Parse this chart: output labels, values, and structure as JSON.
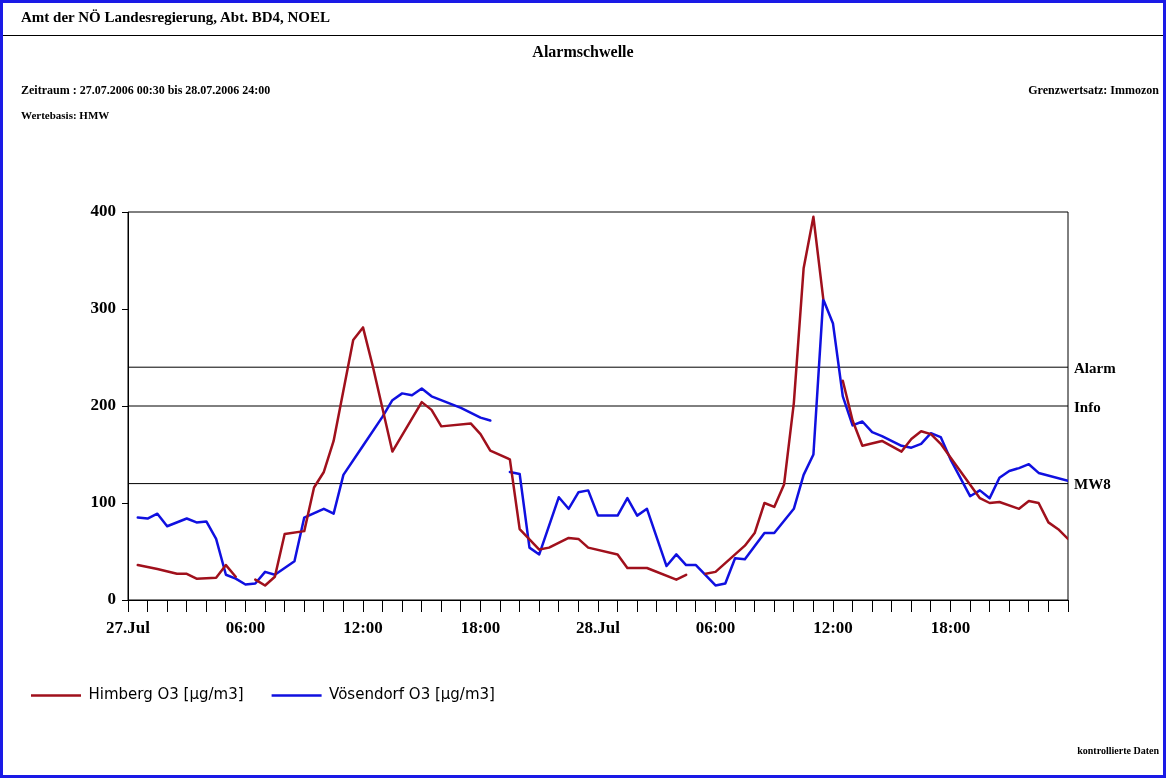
{
  "chart_data": {
    "type": "line",
    "title": "Alarmschwelle",
    "annotations": [
      "Amt der NÖ Landesregierung, Abt. BD4, NOEL",
      "Zeitraum  : 27.07.2006 00:30 bis 28.07.2006 24:00",
      "Grenzwertsatz: Immozon",
      "Wertebasis: HMW",
      "kontrollierte Daten"
    ],
    "xlim": [
      "2006-07-27T00:00",
      "2006-07-29T00:00"
    ],
    "xticks": [
      {
        "value": "2006-07-27T00:00",
        "label": "27.Jul"
      },
      {
        "value": "2006-07-27T01:00",
        "label": null
      },
      {
        "value": "2006-07-27T02:00",
        "label": null
      },
      {
        "value": "2006-07-27T03:00",
        "label": null
      },
      {
        "value": "2006-07-27T04:00",
        "label": null
      },
      {
        "value": "2006-07-27T05:00",
        "label": null
      },
      {
        "value": "2006-07-27T06:00",
        "label": "06:00"
      },
      {
        "value": "2006-07-27T07:00",
        "label": null
      },
      {
        "value": "2006-07-27T08:00",
        "label": null
      },
      {
        "value": "2006-07-27T09:00",
        "label": null
      },
      {
        "value": "2006-07-27T10:00",
        "label": null
      },
      {
        "value": "2006-07-27T11:00",
        "label": null
      },
      {
        "value": "2006-07-27T12:00",
        "label": "12:00"
      },
      {
        "value": "2006-07-27T13:00",
        "label": null
      },
      {
        "value": "2006-07-27T14:00",
        "label": null
      },
      {
        "value": "2006-07-27T15:00",
        "label": null
      },
      {
        "value": "2006-07-27T16:00",
        "label": null
      },
      {
        "value": "2006-07-27T17:00",
        "label": null
      },
      {
        "value": "2006-07-27T18:00",
        "label": "18:00"
      },
      {
        "value": "2006-07-27T19:00",
        "label": null
      },
      {
        "value": "2006-07-27T20:00",
        "label": null
      },
      {
        "value": "2006-07-27T21:00",
        "label": null
      },
      {
        "value": "2006-07-27T22:00",
        "label": null
      },
      {
        "value": "2006-07-27T23:00",
        "label": null
      },
      {
        "value": "2006-07-28T00:00",
        "label": "28.Jul"
      },
      {
        "value": "2006-07-28T01:00",
        "label": null
      },
      {
        "value": "2006-07-28T02:00",
        "label": null
      },
      {
        "value": "2006-07-28T03:00",
        "label": null
      },
      {
        "value": "2006-07-28T04:00",
        "label": null
      },
      {
        "value": "2006-07-28T05:00",
        "label": null
      },
      {
        "value": "2006-07-28T06:00",
        "label": "06:00"
      },
      {
        "value": "2006-07-28T07:00",
        "label": null
      },
      {
        "value": "2006-07-28T08:00",
        "label": null
      },
      {
        "value": "2006-07-28T09:00",
        "label": null
      },
      {
        "value": "2006-07-28T10:00",
        "label": null
      },
      {
        "value": "2006-07-28T11:00",
        "label": null
      },
      {
        "value": "2006-07-28T12:00",
        "label": "12:00"
      },
      {
        "value": "2006-07-28T13:00",
        "label": null
      },
      {
        "value": "2006-07-28T14:00",
        "label": null
      },
      {
        "value": "2006-07-28T15:00",
        "label": null
      },
      {
        "value": "2006-07-28T16:00",
        "label": null
      },
      {
        "value": "2006-07-28T17:00",
        "label": null
      },
      {
        "value": "2006-07-28T18:00",
        "label": "18:00"
      },
      {
        "value": "2006-07-28T19:00",
        "label": null
      },
      {
        "value": "2006-07-28T20:00",
        "label": null
      },
      {
        "value": "2006-07-28T21:00",
        "label": null
      },
      {
        "value": "2006-07-28T22:00",
        "label": null
      },
      {
        "value": "2006-07-28T23:00",
        "label": null
      },
      {
        "value": "2006-07-29T00:00",
        "label": null
      }
    ],
    "ylim": [
      0,
      400
    ],
    "yticks": [
      0,
      100,
      200,
      300,
      400
    ],
    "legend": "bottom",
    "ref_lines": [
      {
        "axis": "y",
        "value": 240,
        "label": "Alarm",
        "color": "#000000"
      },
      {
        "axis": "y",
        "value": 200,
        "label": "Info",
        "color": "#000000"
      },
      {
        "axis": "y",
        "value": 120,
        "label": "MW8",
        "color": "#000000"
      }
    ],
    "series": [
      {
        "name": "Himberg O3 [μg/m3]",
        "color": "#a0101c",
        "x": [
          "2006-07-27T00:30",
          "2006-07-27T01:30",
          "2006-07-27T02:30",
          "2006-07-27T03:00",
          "2006-07-27T03:30",
          "2006-07-27T04:30",
          "2006-07-27T05:00",
          "2006-07-27T05:30",
          "2006-07-27T06:00",
          "2006-07-27T06:30",
          "2006-07-27T07:00",
          "2006-07-27T07:30",
          "2006-07-27T08:00",
          "2006-07-27T09:00",
          "2006-07-27T09:30",
          "2006-07-27T10:00",
          "2006-07-27T10:30",
          "2006-07-27T11:30",
          "2006-07-27T12:00",
          "2006-07-27T12:30",
          "2006-07-27T13:30",
          "2006-07-27T15:00",
          "2006-07-27T15:30",
          "2006-07-27T16:00",
          "2006-07-27T17:30",
          "2006-07-27T18:00",
          "2006-07-27T18:30",
          "2006-07-27T19:30",
          "2006-07-27T20:00",
          "2006-07-27T21:00",
          "2006-07-27T21:30",
          "2006-07-27T22:30",
          "2006-07-27T23:00",
          "2006-07-27T23:30",
          "2006-07-28T01:00",
          "2006-07-28T01:30",
          "2006-07-28T02:30",
          "2006-07-28T04:00",
          "2006-07-28T04:30",
          "2006-07-28T05:00",
          "2006-07-28T05:30",
          "2006-07-28T06:00",
          "2006-07-28T07:30",
          "2006-07-28T08:00",
          "2006-07-28T08:30",
          "2006-07-28T09:00",
          "2006-07-28T09:30",
          "2006-07-28T10:00",
          "2006-07-28T10:30",
          "2006-07-28T11:00",
          "2006-07-28T11:30",
          "2006-07-28T12:00",
          "2006-07-28T12:30",
          "2006-07-28T13:00",
          "2006-07-28T13:30",
          "2006-07-28T14:30",
          "2006-07-28T15:30",
          "2006-07-28T16:00",
          "2006-07-28T16:30",
          "2006-07-28T17:00",
          "2006-07-28T17:30",
          "2006-07-28T18:00",
          "2006-07-28T19:30",
          "2006-07-28T20:00",
          "2006-07-28T20:30",
          "2006-07-28T21:30",
          "2006-07-28T22:00",
          "2006-07-28T22:30",
          "2006-07-28T23:00",
          "2006-07-28T23:30",
          "2006-07-29T00:00"
        ],
        "values": [
          36,
          32,
          27,
          27,
          22,
          23,
          36,
          24,
          null,
          21,
          15,
          24,
          68,
          71,
          116,
          132,
          164,
          268,
          281,
          241,
          153,
          204,
          196,
          179,
          182,
          171,
          154,
          145,
          73,
          52,
          54,
          64,
          63,
          54,
          47,
          33,
          33,
          21,
          26,
          null,
          27,
          29,
          56,
          69,
          100,
          96,
          119,
          203,
          342,
          395,
          311,
          null,
          226,
          185,
          159,
          164,
          153,
          166,
          174,
          171,
          161,
          147,
          105,
          100,
          101,
          94,
          102,
          100,
          80,
          73,
          63
        ]
      },
      {
        "name": "Vösendorf O3 [μg/m3]",
        "color": "#1010e0",
        "x": [
          "2006-07-27T00:30",
          "2006-07-27T01:00",
          "2006-07-27T01:30",
          "2006-07-27T02:00",
          "2006-07-27T03:00",
          "2006-07-27T03:30",
          "2006-07-27T04:00",
          "2006-07-27T04:30",
          "2006-07-27T05:00",
          "2006-07-27T05:30",
          "2006-07-27T06:00",
          "2006-07-27T06:30",
          "2006-07-27T07:00",
          "2006-07-27T07:30",
          "2006-07-27T08:30",
          "2006-07-27T09:00",
          "2006-07-27T10:00",
          "2006-07-27T10:30",
          "2006-07-27T11:00",
          "2006-07-27T12:00",
          "2006-07-27T13:00",
          "2006-07-27T13:30",
          "2006-07-27T14:00",
          "2006-07-27T14:30",
          "2006-07-27T15:00",
          "2006-07-27T15:30",
          "2006-07-27T17:00",
          "2006-07-27T18:00",
          "2006-07-27T18:30",
          "2006-07-27T19:00",
          "2006-07-27T19:30",
          "2006-07-27T20:00",
          "2006-07-27T20:30",
          "2006-07-27T21:00",
          "2006-07-27T22:00",
          "2006-07-27T22:30",
          "2006-07-27T23:00",
          "2006-07-27T23:30",
          "2006-07-28T00:00",
          "2006-07-28T01:00",
          "2006-07-28T01:30",
          "2006-07-28T02:00",
          "2006-07-28T02:30",
          "2006-07-28T03:30",
          "2006-07-28T04:00",
          "2006-07-28T04:30",
          "2006-07-28T05:00",
          "2006-07-28T06:00",
          "2006-07-28T06:30",
          "2006-07-28T07:00",
          "2006-07-28T07:30",
          "2006-07-28T08:30",
          "2006-07-28T09:00",
          "2006-07-28T10:00",
          "2006-07-28T10:30",
          "2006-07-28T11:00",
          "2006-07-28T11:30",
          "2006-07-28T12:00",
          "2006-07-28T12:30",
          "2006-07-28T13:00",
          "2006-07-28T13:30",
          "2006-07-28T14:00",
          "2006-07-28T14:30",
          "2006-07-28T15:30",
          "2006-07-28T16:00",
          "2006-07-28T16:30",
          "2006-07-28T17:00",
          "2006-07-28T17:30",
          "2006-07-28T18:00",
          "2006-07-28T19:00",
          "2006-07-28T19:30",
          "2006-07-28T20:00",
          "2006-07-28T20:30",
          "2006-07-28T21:00",
          "2006-07-28T21:30",
          "2006-07-28T22:00",
          "2006-07-28T22:30",
          "2006-07-29T00:00"
        ],
        "values": [
          85,
          84,
          89,
          76,
          84,
          80,
          81,
          63,
          26,
          22,
          16,
          17,
          29,
          26,
          40,
          85,
          94,
          89,
          129,
          159,
          189,
          206,
          213,
          211,
          218,
          210,
          198,
          188,
          185,
          null,
          132,
          130,
          54,
          47,
          106,
          94,
          111,
          113,
          87,
          87,
          105,
          87,
          94,
          35,
          47,
          36,
          36,
          15,
          17,
          43,
          42,
          69,
          69,
          94,
          129,
          150,
          310,
          285,
          210,
          180,
          184,
          173,
          169,
          159,
          157,
          161,
          172,
          168,
          145,
          107,
          113,
          105,
          126,
          133,
          136,
          140,
          131,
          123
        ]
      }
    ]
  }
}
